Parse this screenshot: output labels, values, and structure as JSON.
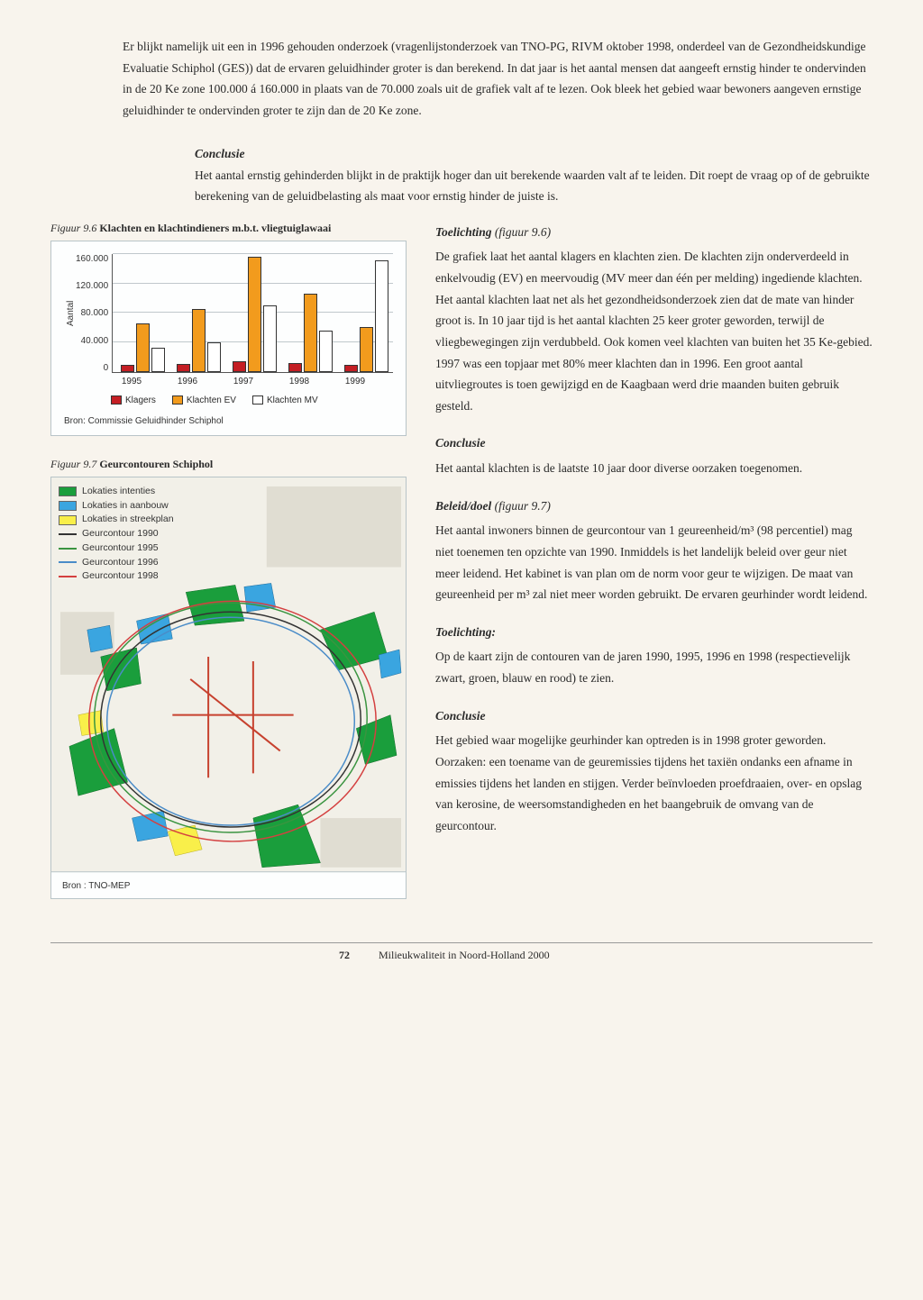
{
  "intro_text": "Er blijkt namelijk uit een in 1996 gehouden onderzoek (vragenlijstonderzoek van TNO-PG, RIVM oktober 1998, onderdeel van de Gezondheidskundige Evaluatie Schiphol (GES)) dat de ervaren geluidhinder groter is dan berekend. In dat jaar is het aantal mensen dat aangeeft ernstig hinder te ondervinden in de 20 Ke zone 100.000 á 160.000 in plaats van de 70.000 zoals uit de grafiek valt af te lezen. Ook bleek het gebied waar bewoners aangeven ernstige geluidhinder te ondervinden groter te zijn dan de 20 Ke zone.",
  "conclusie_label": "Conclusie",
  "conclusie1_text": "Het aantal ernstig gehinderden blijkt in de praktijk hoger dan uit berekende waarden valt af te leiden. Dit roept de vraag op of de gebruikte berekening van de geluidbelasting als maat voor ernstig hinder de juiste is.",
  "fig96_num": "Figuur 9.6",
  "fig96_title": "Klachten en klachtindieners m.b.t. vliegtuiglawaai",
  "fig97_num": "Figuur 9.7",
  "fig97_title": "Geurcontouren Schiphol",
  "chart": {
    "y_label": "Aantal",
    "y_ticks": [
      "160.000",
      "120.000",
      "80.000",
      "40.000",
      "0"
    ],
    "y_max": 160000,
    "categories": [
      "1995",
      "1996",
      "1997",
      "1998",
      "1999"
    ],
    "series": [
      {
        "name": "Klagers",
        "color": "#c41e24",
        "values": [
          9000,
          11000,
          14000,
          12000,
          9000
        ]
      },
      {
        "name": "Klachten EV",
        "color": "#f29b1d",
        "values": [
          65000,
          85000,
          155000,
          105000,
          60000
        ]
      },
      {
        "name": "Klachten MV",
        "color": "#ffffff",
        "values": [
          32000,
          40000,
          90000,
          55000,
          150000
        ]
      }
    ],
    "grid_color": "#c0c8cc",
    "source": "Bron: Commissie Geluidhinder Schiphol"
  },
  "toelichting96_label": "Toelichting",
  "toelichting96_ref": "(figuur 9.6)",
  "toelichting96_text": "De grafiek laat het aantal klagers en klachten zien. De klachten zijn onderverdeeld in enkelvoudig (EV) en meervoudig (MV meer dan één per melding) ingediende klachten. Het aantal klachten laat net als het gezondheidsonderzoek zien dat de mate van hinder groot is. In 10 jaar tijd is het aantal klachten 25 keer groter geworden, terwijl de vliegbewegingen zijn verdubbeld. Ook komen veel klachten van buiten het 35 Ke-gebied. 1997 was een topjaar met 80% meer klachten dan in 1996. Een groot aantal uitvliegroutes is toen gewijzigd en de Kaagbaan werd drie maanden buiten gebruik gesteld.",
  "map_legend": {
    "intenties": {
      "label": "Lokaties intenties",
      "color": "#1a9e3c"
    },
    "aanbouw": {
      "label": "Lokaties in aanbouw",
      "color": "#3aa5e0"
    },
    "streekplan": {
      "label": "Lokaties in streekplan",
      "color": "#f9ef4a"
    },
    "c1990": {
      "label": "Geurcontour 1990",
      "color": "#333333"
    },
    "c1995": {
      "label": "Geurcontour 1995",
      "color": "#3a9440"
    },
    "c1996": {
      "label": "Geurcontour 1996",
      "color": "#4a8cc8"
    },
    "c1998": {
      "label": "Geurcontour 1998",
      "color": "#d44040"
    }
  },
  "map_source": "Bron : TNO-MEP",
  "conclusie2_text": "Het aantal klachten is de laatste 10 jaar door diverse oorzaken toegenomen.",
  "beleid_label": "Beleid/doel",
  "beleid_ref": "(figuur 9.7)",
  "beleid_text": "Het aantal inwoners binnen de geurcontour van 1 geureenheid/m³ (98 percentiel) mag niet toenemen ten opzichte van 1990. Inmiddels is het landelijk beleid over geur niet meer leidend. Het kabinet is van plan om de norm voor geur te wijzigen. De maat van geureenheid per m³ zal niet meer worden gebruikt. De ervaren geurhinder wordt leidend.",
  "toelichting_map_label": "Toelichting:",
  "toelichting_map_text": "Op de kaart zijn de contouren van de jaren 1990, 1995, 1996 en 1998 (respectievelijk zwart, groen, blauw en rood) te zien.",
  "conclusie3_text": "Het gebied waar mogelijke geurhinder kan optreden is in 1998 groter geworden. Oorzaken: een toename van de geuremissies tijdens het taxiën ondanks een afname in emissies tijdens het landen en stijgen. Verder beïnvloeden proefdraaien, over- en opslag van kerosine, de weersomstandigheden en het baangebruik de omvang van de geurcontour.",
  "page_number": "72",
  "footer_title": "Milieukwaliteit in Noord-Holland 2000"
}
